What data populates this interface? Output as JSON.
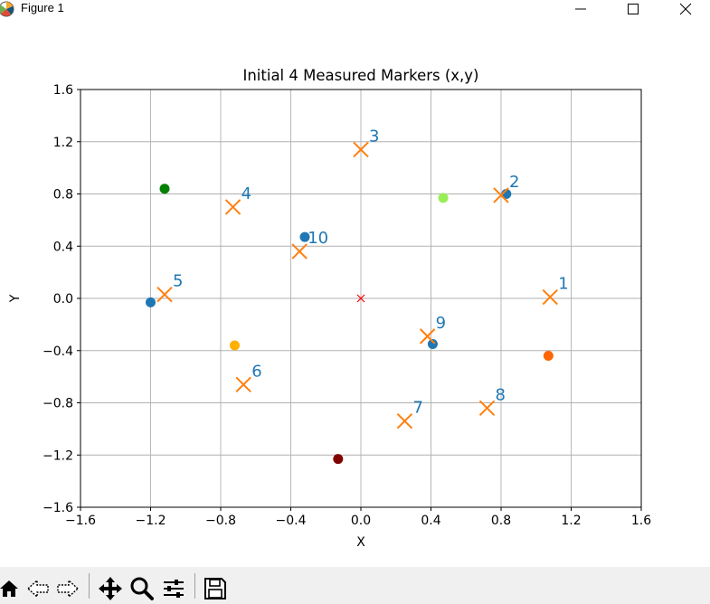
{
  "window": {
    "title": "Figure 1"
  },
  "toolbar": {
    "tools": [
      "home-icon",
      "back-icon",
      "forward-icon",
      "pan-icon",
      "zoom-icon",
      "configure-icon",
      "save-icon"
    ]
  },
  "chart_data": {
    "type": "scatter",
    "title": "Initial 4 Measured Markers (x,y)",
    "xlabel": "X",
    "ylabel": "Y",
    "xlim": [
      -1.6,
      1.6
    ],
    "ylim": [
      -1.6,
      1.6
    ],
    "xticks": [
      "−1.6",
      "−1.2",
      "−0.8",
      "−0.4",
      "0.0",
      "0.4",
      "0.8",
      "1.2",
      "1.6"
    ],
    "yticks": [
      "1.6",
      "1.2",
      "0.8",
      "0.4",
      "0.0",
      "−0.4",
      "−0.8",
      "−1.2",
      "−1.6"
    ],
    "grid": true,
    "measured_dots": [
      {
        "x": 0.83,
        "y": 0.8,
        "color": "#1f77b4"
      },
      {
        "x": -0.32,
        "y": 0.47,
        "color": "#1f77b4"
      },
      {
        "x": -1.2,
        "y": -0.03,
        "color": "#1f77b4"
      },
      {
        "x": 0.41,
        "y": -0.35,
        "color": "#1f77b4"
      },
      {
        "x": -1.12,
        "y": 0.84,
        "color": "#008000"
      },
      {
        "x": 0.47,
        "y": 0.77,
        "color": "#99ee55"
      },
      {
        "x": -0.72,
        "y": -0.36,
        "color": "#ffb000"
      },
      {
        "x": 1.07,
        "y": -0.44,
        "color": "#ff6600"
      },
      {
        "x": -0.13,
        "y": -1.23,
        "color": "#800000"
      }
    ],
    "markers": [
      {
        "label": "1",
        "x": 1.08,
        "y": 0.01
      },
      {
        "label": "2",
        "x": 0.8,
        "y": 0.79
      },
      {
        "label": "3",
        "x": 0.0,
        "y": 1.14
      },
      {
        "label": "4",
        "x": -0.73,
        "y": 0.7
      },
      {
        "label": "5",
        "x": -1.12,
        "y": 0.03
      },
      {
        "label": "6",
        "x": -0.67,
        "y": -0.66
      },
      {
        "label": "7",
        "x": 0.25,
        "y": -0.94
      },
      {
        "label": "8",
        "x": 0.72,
        "y": -0.84
      },
      {
        "label": "9",
        "x": 0.38,
        "y": -0.29
      },
      {
        "label": "10",
        "x": -0.35,
        "y": 0.36
      }
    ],
    "marker_color": "#ff7f0e",
    "label_color": "#1f77b4",
    "origin": {
      "x": 0.0,
      "y": 0.0,
      "color": "#ff0000"
    }
  }
}
